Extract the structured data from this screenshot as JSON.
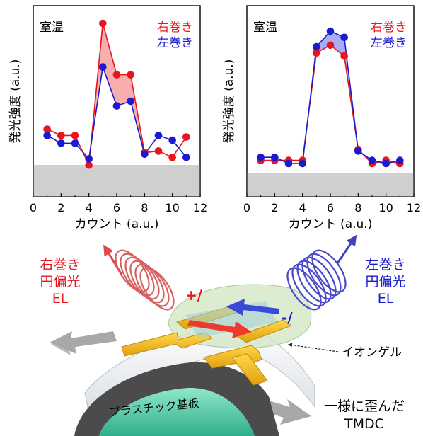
{
  "chart_data": [
    {
      "type": "line",
      "title": "室温",
      "xlabel": "カウント (a.u.)",
      "ylabel": "発光強度 (a.u.)",
      "xlim": [
        0,
        12
      ],
      "xticks": [
        0,
        2,
        4,
        6,
        8,
        10,
        12
      ],
      "grid": false,
      "legend_position": "top-right",
      "series": [
        {
          "name": "右巻き",
          "color": "#e8141e",
          "x": [
            1,
            2,
            3,
            4,
            5,
            6,
            7,
            8,
            9,
            10,
            11
          ],
          "y": [
            0.32,
            0.28,
            0.28,
            0.09,
            1.0,
            0.67,
            0.67,
            0.17,
            0.18,
            0.14,
            0.27
          ]
        },
        {
          "name": "左巻き",
          "color": "#1a1ad0",
          "x": [
            1,
            2,
            3,
            4,
            5,
            6,
            7,
            8,
            9,
            10,
            11
          ],
          "y": [
            0.28,
            0.23,
            0.23,
            0.13,
            0.72,
            0.47,
            0.5,
            0.16,
            0.28,
            0.25,
            0.14
          ]
        }
      ]
    },
    {
      "type": "line",
      "title": "室温",
      "xlabel": "カウント (a.u.)",
      "ylabel": "発光強度 (a.u.)",
      "xlim": [
        0,
        12
      ],
      "xticks": [
        0,
        2,
        4,
        6,
        8,
        10,
        12
      ],
      "grid": false,
      "legend_position": "top-right",
      "series": [
        {
          "name": "右巻き",
          "color": "#e8141e",
          "x": [
            1,
            2,
            3,
            4,
            5,
            6,
            7,
            8,
            9,
            10,
            11
          ],
          "y": [
            0.12,
            0.12,
            0.12,
            0.12,
            0.81,
            0.86,
            0.79,
            0.19,
            0.1,
            0.12,
            0.1
          ]
        },
        {
          "name": "左巻き",
          "color": "#1a1ad0",
          "x": [
            1,
            2,
            3,
            4,
            5,
            6,
            7,
            8,
            9,
            10,
            11
          ],
          "y": [
            0.14,
            0.14,
            0.1,
            0.1,
            0.85,
            0.95,
            0.91,
            0.18,
            0.12,
            0.1,
            0.12
          ]
        }
      ]
    }
  ],
  "diagram": {
    "left_light_label": [
      "右巻き",
      "円偏光",
      "EL"
    ],
    "right_light_label": [
      "左巻き",
      "円偏光",
      "EL"
    ],
    "left_light_color": "#e8141e",
    "right_light_color": "#1a1ad0",
    "plus_label": "+/",
    "minus_label": "-/",
    "ion_gel_label": "イオンゲル",
    "substrate_label": "プラスチック基板",
    "strain_label": [
      "一様に歪んだ",
      "TMDC"
    ]
  }
}
